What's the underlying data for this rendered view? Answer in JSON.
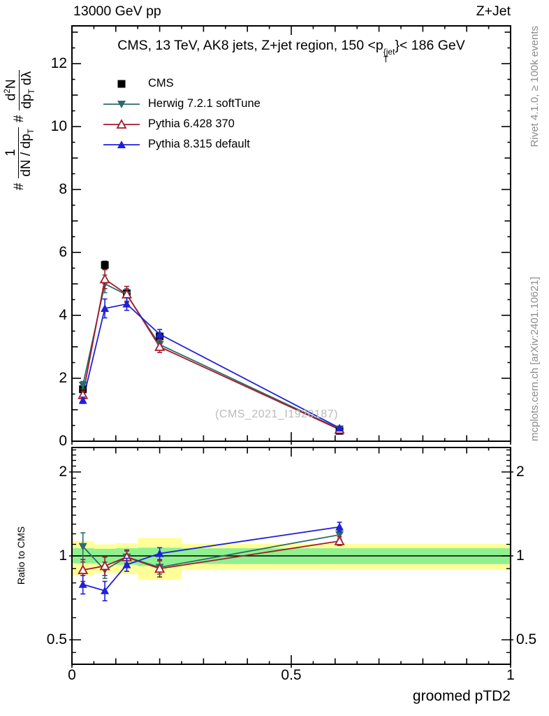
{
  "header": {
    "left": "13000 GeV pp",
    "right": "Z+Jet"
  },
  "panel_title": {
    "pre": "CMS, 13 TeV, AK8 jets, Z+jet region, 150 <p",
    "sup": "{jet",
    "sub": "T",
    "post": "}< 186 GeV"
  },
  "ylabel": {
    "hash1": "#",
    "frac1_num": "1",
    "frac1_den_pre": "dN / dp",
    "frac1_den_sub": "T",
    "hash2": "#",
    "frac2_num_pre": "d",
    "frac2_num_sup": "2",
    "frac2_num_post": "N",
    "frac2_den_pre": "dp",
    "frac2_den_sub": "T",
    "frac2_den_post": " dλ"
  },
  "watermark": "(CMS_2021_I1920187)",
  "side_notes": {
    "top": "Rivet 4.1.0, ≥ 100k events",
    "bottom": "mcplots.cern.ch [arXiv:2401.10621]"
  },
  "colors": {
    "cms": "#000000",
    "herwig": "#2e6b6b",
    "pythia6": "#a41a2a",
    "pythia8": "#2020d8",
    "band_yellow": "#ffff99",
    "band_green": "#8ff08f",
    "watermark": "#bbbbbb",
    "side_note": "#8c8c8c"
  },
  "chart_data": [
    {
      "type": "line",
      "panel": "main",
      "title": "CMS, 13 TeV, AK8 jets, Z+jet region, 150 <p_T^{jet}< 186 GeV",
      "xlabel": "groomed pTD2",
      "xlim": [
        0,
        1
      ],
      "ylim": [
        0,
        13.2
      ],
      "xticks": [
        0,
        0.5,
        1
      ],
      "yticks": [
        0,
        2,
        4,
        6,
        8,
        10,
        12
      ],
      "x": [
        0.025,
        0.075,
        0.125,
        0.2,
        0.61
      ],
      "series": [
        {
          "name": "CMS",
          "color": "#000000",
          "marker": "square-filled",
          "line": false,
          "values": [
            1.65,
            5.6,
            4.7,
            3.33,
            0.33
          ],
          "errors": [
            0.08,
            0.12,
            0.1,
            0.08,
            0.03
          ]
        },
        {
          "name": "Herwig 7.2.1 softTune",
          "color": "#2e6b6b",
          "marker": "triangle-down-filled",
          "line": true,
          "values": [
            1.78,
            5.0,
            4.65,
            3.07,
            0.39
          ],
          "errors": [
            0.12,
            0.28,
            0.2,
            0.15,
            0.04
          ]
        },
        {
          "name": "Pythia 6.428 370",
          "color": "#a41a2a",
          "marker": "triangle-up-open",
          "line": true,
          "values": [
            1.47,
            5.15,
            4.67,
            3.0,
            0.37
          ],
          "errors": [
            0.12,
            0.3,
            0.25,
            0.18,
            0.05
          ]
        },
        {
          "name": "Pythia 8.315 default",
          "color": "#2020d8",
          "marker": "triangle-up-filled",
          "line": true,
          "values": [
            1.3,
            4.22,
            4.36,
            3.4,
            0.42
          ],
          "errors": [
            0.1,
            0.3,
            0.2,
            0.15,
            0.04
          ]
        }
      ]
    },
    {
      "type": "ratio",
      "panel": "ratio",
      "ylabel": "Ratio to CMS",
      "scale": "log2",
      "ylim": [
        0.41,
        2.45
      ],
      "yticks": [
        0.5,
        1,
        2
      ],
      "reference": 1,
      "x": [
        0.025,
        0.075,
        0.125,
        0.2,
        0.61
      ],
      "bands": [
        {
          "x0": 0,
          "x1": 0.05,
          "yellow": [
            0.85,
            1.13
          ],
          "green": [
            0.94,
            1.065
          ]
        },
        {
          "x0": 0.05,
          "x1": 0.1,
          "yellow": [
            0.87,
            1.1
          ],
          "green": [
            0.94,
            1.06
          ]
        },
        {
          "x0": 0.1,
          "x1": 0.15,
          "yellow": [
            0.86,
            1.11
          ],
          "green": [
            0.93,
            1.065
          ]
        },
        {
          "x0": 0.15,
          "x1": 0.25,
          "yellow": [
            0.82,
            1.16
          ],
          "green": [
            0.92,
            1.07
          ]
        },
        {
          "x0": 0.25,
          "x1": 1.0,
          "yellow": [
            0.89,
            1.105
          ],
          "green": [
            0.935,
            1.065
          ]
        }
      ],
      "series": [
        {
          "name": "Herwig 7.2.1 softTune",
          "color": "#2e6b6b",
          "marker": "triangle-down-filled",
          "values": [
            1.08,
            0.89,
            0.99,
            0.91,
            1.19
          ],
          "errors": [
            0.13,
            0.06,
            0.05,
            0.05,
            0.04
          ]
        },
        {
          "name": "Pythia 6.428 370",
          "color": "#a41a2a",
          "marker": "triangle-up-open",
          "values": [
            0.89,
            0.92,
            0.99,
            0.9,
            1.13
          ],
          "errors": [
            0.08,
            0.07,
            0.06,
            0.06,
            0.04
          ]
        },
        {
          "name": "Pythia 8.315 default",
          "color": "#2020d8",
          "marker": "triangle-up-filled",
          "values": [
            0.79,
            0.75,
            0.93,
            1.02,
            1.27
          ],
          "errors": [
            0.06,
            0.06,
            0.05,
            0.05,
            0.05
          ]
        }
      ]
    }
  ]
}
